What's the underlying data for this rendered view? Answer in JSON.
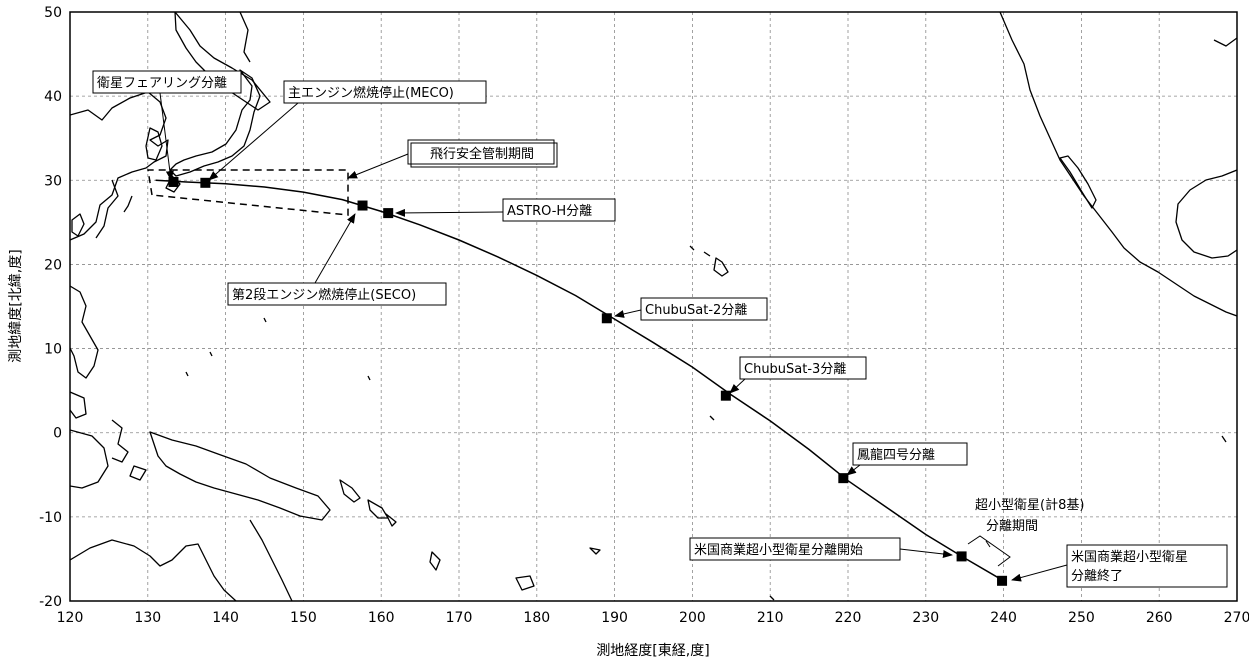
{
  "chart_data": {
    "type": "map",
    "xlabel": "測地経度[東経,度]",
    "ylabel": "測地緯度[北緯,度]",
    "xlim": [
      120,
      270
    ],
    "ylim": [
      -20,
      50
    ],
    "x_ticks": [
      120,
      130,
      140,
      150,
      160,
      170,
      180,
      190,
      200,
      210,
      220,
      230,
      240,
      250,
      260,
      270
    ],
    "y_ticks": [
      -20,
      -10,
      0,
      10,
      20,
      30,
      40,
      50
    ],
    "grid": true,
    "track": [
      [
        131,
        30.0
      ],
      [
        135,
        29.8
      ],
      [
        140,
        29.6
      ],
      [
        145,
        29.2
      ],
      [
        150,
        28.6
      ],
      [
        155,
        27.7
      ],
      [
        160,
        26.3
      ],
      [
        165,
        24.7
      ],
      [
        170,
        22.9
      ],
      [
        175,
        20.9
      ],
      [
        180,
        18.7
      ],
      [
        185,
        16.3
      ],
      [
        190,
        13.5
      ],
      [
        195,
        10.7
      ],
      [
        200,
        7.8
      ],
      [
        205,
        4.5
      ],
      [
        210,
        1.4
      ],
      [
        215,
        -2.0
      ],
      [
        220,
        -5.7
      ],
      [
        225,
        -8.9
      ],
      [
        230,
        -12.1
      ],
      [
        235,
        -14.9
      ],
      [
        240,
        -17.6
      ]
    ],
    "events": [
      {
        "label": "衛星フェアリング分離",
        "lon": 133.3,
        "lat": 29.8
      },
      {
        "label": "主エンジン燃焼停止(MECO)",
        "lon": 137.4,
        "lat": 29.7
      },
      {
        "label": "第2段エンジン燃焼停止(SECO)",
        "lon": 157.6,
        "lat": 27.0
      },
      {
        "label": "ASTRO-H分離",
        "lon": 160.9,
        "lat": 26.1
      },
      {
        "label": "ChubuSat-2分離",
        "lon": 189.0,
        "lat": 13.6
      },
      {
        "label": "ChubuSat-3分離",
        "lon": 204.3,
        "lat": 4.4
      },
      {
        "label": "鳳龍四号分離",
        "lon": 219.4,
        "lat": -5.4
      },
      {
        "label": "米国商業超小型衛星分離開始",
        "lon": 234.6,
        "lat": -14.7
      },
      {
        "label": "米国商業超小型衛星分離終了",
        "lon": 239.8,
        "lat": -17.6
      }
    ],
    "annotations": {
      "safety": "飛行安全管制期間",
      "cubesat_line1": "超小型衛星(計8基)",
      "cubesat_line2": "分離期間",
      "end_line1": "米国商業超小型衛星",
      "end_line2": "分離終了"
    },
    "colors": {
      "line": "#000000",
      "grid": "#8a8a8a",
      "background": "#ffffff"
    }
  }
}
